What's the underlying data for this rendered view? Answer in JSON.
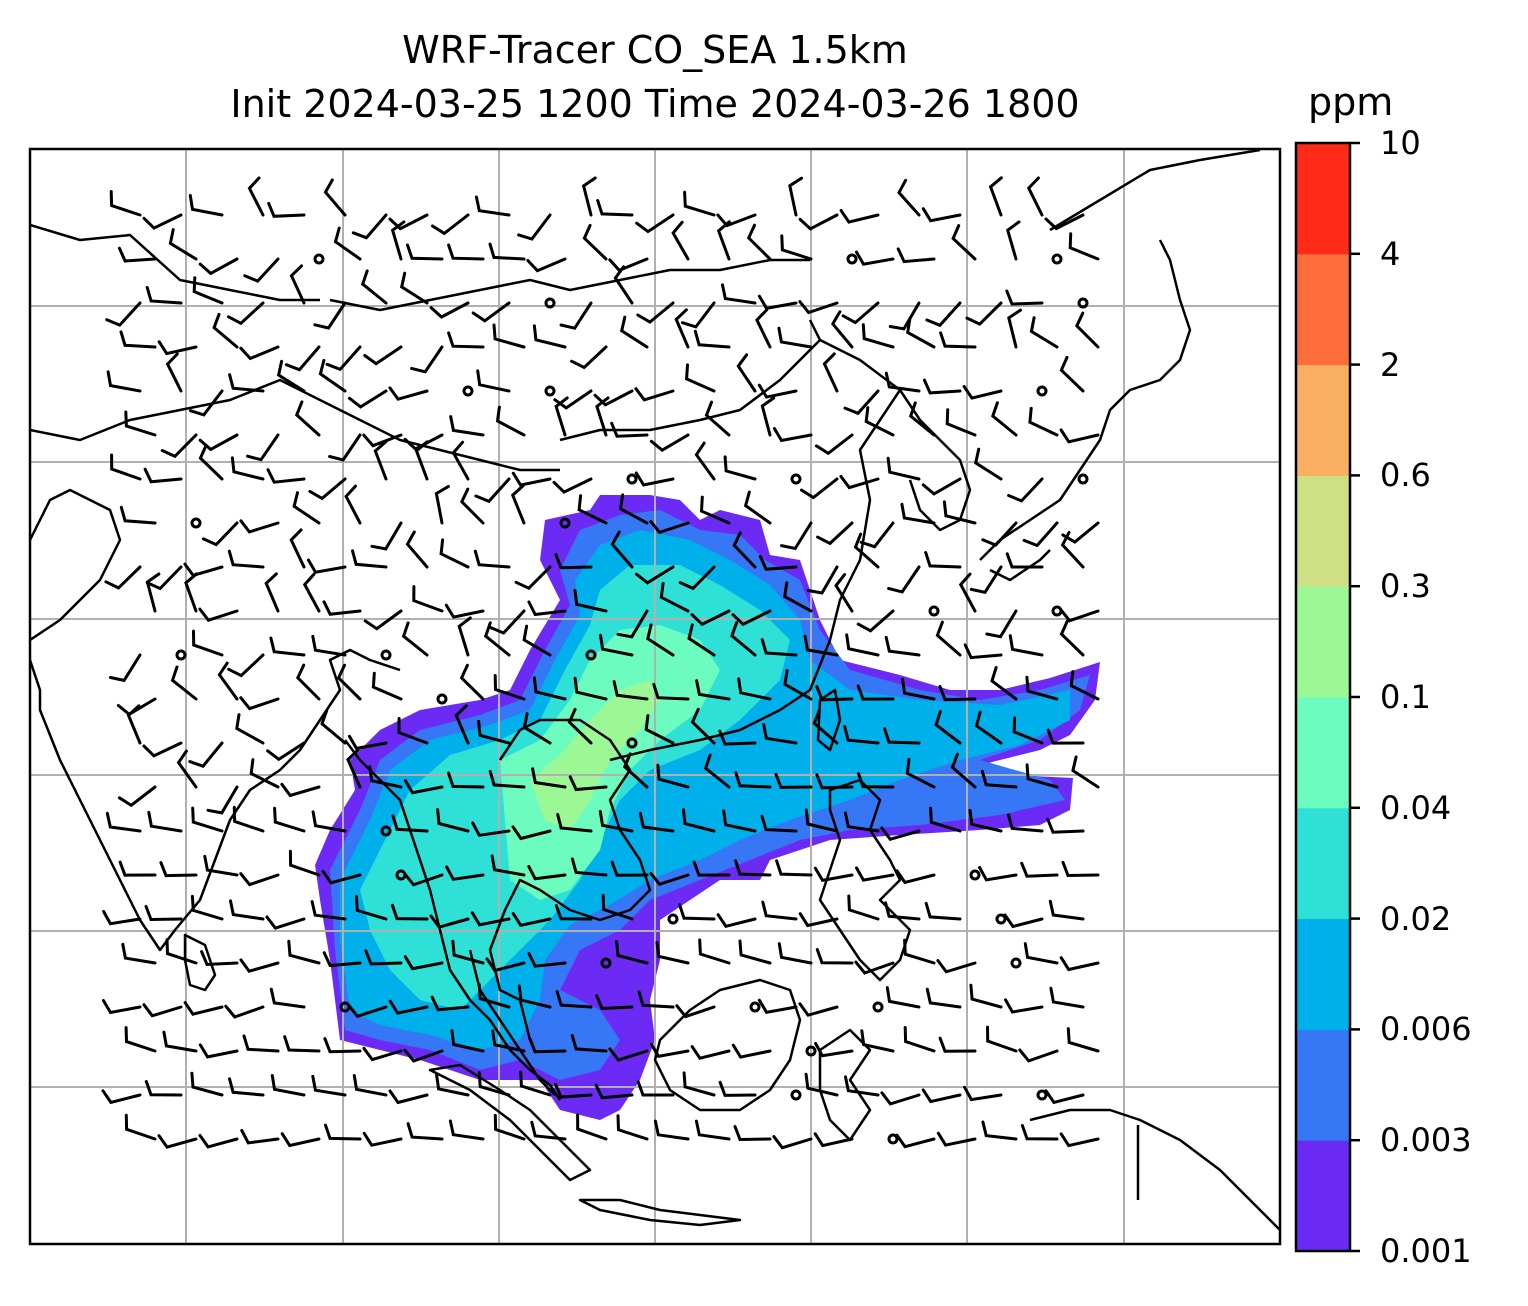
{
  "title": {
    "line1": "WRF-Tracer CO_SEA 1.5km",
    "line2": "Init 2024-03-25 1200 Time 2024-03-26 1800"
  },
  "colorbar": {
    "unit": "ppm",
    "levels": [
      "0.001",
      "0.003",
      "0.006",
      "0.02",
      "0.04",
      "0.1",
      "0.3",
      "0.6",
      "2",
      "4",
      "10"
    ],
    "colors": [
      "#6b2bf5",
      "#3577f5",
      "#00b0ea",
      "#2ee0d6",
      "#6dfcbf",
      "#9cf895",
      "#cfe084",
      "#fbaf62",
      "#fd6e3c",
      "#ff2a18"
    ]
  },
  "map": {
    "plume_colors": {
      "outer": "#6b2bf5",
      "mid": "#3577f5",
      "inner": "#00b0ea",
      "core": "#2ee0d6",
      "peak": "#6dfcbf"
    },
    "gridline_color": "#b0b0b0",
    "coastline_color": "#000000"
  }
}
